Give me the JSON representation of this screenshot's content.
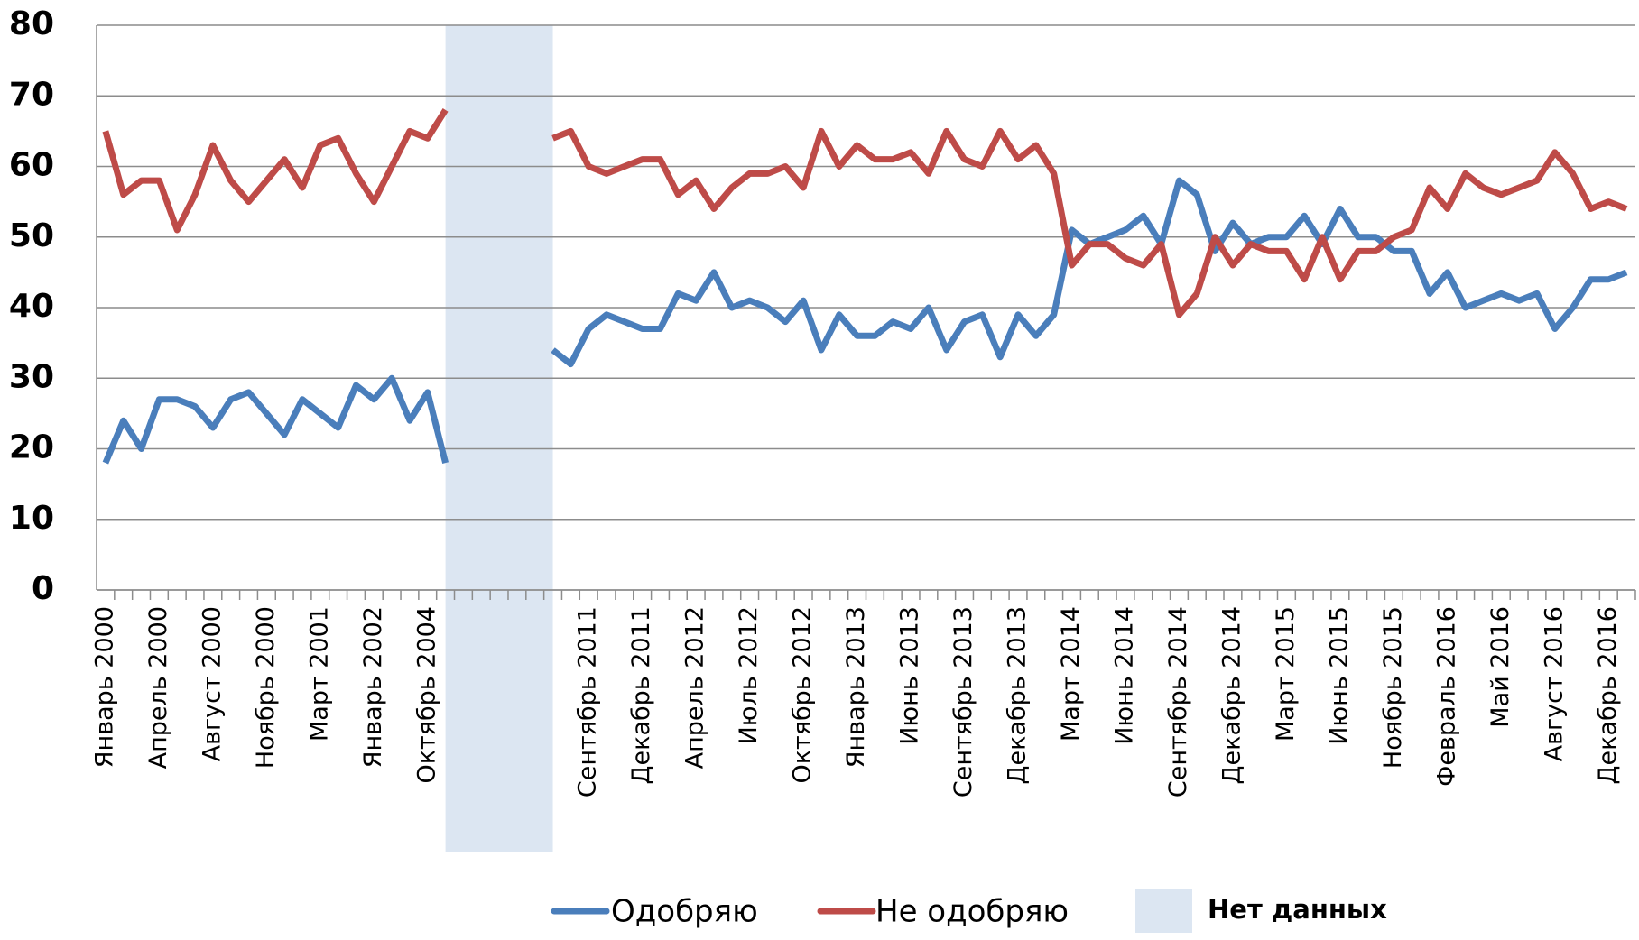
{
  "chart_data": {
    "type": "line",
    "categories": [
      "Январь 2000",
      null,
      null,
      "Апрель 2000",
      null,
      null,
      "Август 2000",
      null,
      null,
      "Ноябрь 2000",
      null,
      null,
      "Март 2001",
      null,
      null,
      "Январь 2002",
      null,
      null,
      "Октябрь 2004",
      null,
      null,
      null,
      null,
      null,
      null,
      null,
      null,
      "Сентябрь 2011",
      null,
      null,
      "Декабрь 2011",
      null,
      null,
      "Апрель 2012",
      null,
      null,
      "Июль 2012",
      null,
      null,
      "Октябрь 2012",
      null,
      null,
      "Январь 2013",
      null,
      null,
      "Июнь 2013",
      null,
      null,
      "Сентябрь 2013",
      null,
      null,
      "Декабрь 2013",
      null,
      null,
      "Март 2014",
      null,
      null,
      "Июнь 2014",
      null,
      null,
      "Сентябрь 2014",
      null,
      null,
      "Декабрь 2014",
      null,
      null,
      "Март 2015",
      null,
      null,
      "Июнь 2015",
      null,
      null,
      "Ноябрь 2015",
      null,
      null,
      "Февраль 2016",
      null,
      null,
      "Май 2016",
      null,
      null,
      "Август 2016",
      null,
      null,
      "Декабрь 2016",
      null
    ],
    "series": [
      {
        "name": "Одобряю",
        "color": "#4a7ebb",
        "values": [
          18,
          24,
          20,
          27,
          27,
          26,
          23,
          27,
          28,
          25,
          22,
          27,
          25,
          23,
          29,
          27,
          30,
          24,
          28,
          18,
          null,
          null,
          null,
          null,
          null,
          34,
          32,
          37,
          39,
          38,
          37,
          37,
          42,
          41,
          45,
          40,
          41,
          40,
          38,
          41,
          34,
          39,
          36,
          36,
          38,
          37,
          40,
          34,
          38,
          39,
          33,
          39,
          36,
          39,
          51,
          49,
          50,
          51,
          53,
          49,
          58,
          56,
          48,
          52,
          49,
          50,
          50,
          53,
          49,
          54,
          50,
          50,
          48,
          48,
          42,
          45,
          40,
          41,
          42,
          41,
          42,
          37,
          40,
          44,
          44,
          45
        ]
      },
      {
        "name": "Не одобряю",
        "color": "#be4b48",
        "values": [
          65,
          56,
          58,
          58,
          51,
          56,
          63,
          58,
          55,
          58,
          61,
          57,
          63,
          64,
          59,
          55,
          60,
          65,
          64,
          68,
          null,
          null,
          null,
          null,
          null,
          64,
          65,
          60,
          59,
          60,
          61,
          61,
          56,
          58,
          54,
          57,
          59,
          59,
          60,
          57,
          65,
          60,
          63,
          61,
          61,
          62,
          59,
          65,
          61,
          60,
          65,
          61,
          63,
          59,
          46,
          49,
          49,
          47,
          46,
          49,
          39,
          42,
          50,
          46,
          49,
          48,
          48,
          44,
          50,
          44,
          48,
          48,
          50,
          51,
          57,
          54,
          59,
          57,
          56,
          57,
          58,
          62,
          59,
          54,
          55,
          54
        ]
      }
    ],
    "no_data": {
      "name": "Нет данных",
      "color": "#dce6f2"
    },
    "ylim": [
      0,
      80
    ],
    "yticks": [
      0,
      10,
      20,
      30,
      40,
      50,
      60,
      70,
      80
    ],
    "grid": true
  }
}
